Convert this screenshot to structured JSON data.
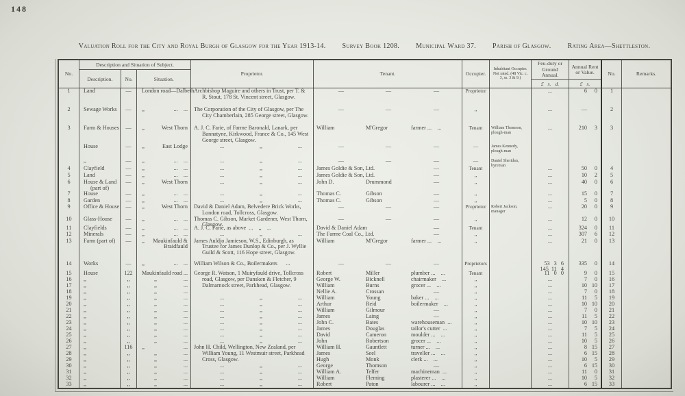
{
  "page": {
    "number": "148"
  },
  "title": {
    "segments": [
      "Valuation Roll for the City and Royal Burgh of Glasgow for the Year 1913-14.",
      "Survey Book 1208.",
      "Municipal Ward 37.",
      "Parish of Glasgow.",
      "Rating Area—Shettleston."
    ]
  },
  "table": {
    "header": {
      "no": "No.",
      "group": "Description and Situation of Subject.",
      "sub_description": "Description.",
      "sub_no": "No.",
      "sub_situation": "Situation.",
      "proprietor": "Proprietor.",
      "tenant": "Tenant.",
      "occupier": "Occupier.",
      "inhabitant": "Inhabitant Occupier. Not rated. (48 Vic. c. 3, ss. 3 & 9.)",
      "feu": "Feu-duty or Ground Annual.",
      "feu_money": "£   s.   d.",
      "rent": "Annual Rent or Value.",
      "rent_money": "£   s.",
      "no2": "No.",
      "remarks": "Remarks."
    },
    "rows": [
      {
        "no": "1",
        "desc": "Land",
        "dnum": "—",
        "sit_l": "London road—Dalbeth",
        "sit_r": "",
        "prop": "Archbishop Maguire and others in Trust, per T. & R. Stout, 178 St. Vincent street, Glasgow.",
        "ten": [
          "—",
          "—",
          "—"
        ],
        "occ": "Proprietor",
        "inhab": "",
        "feu": [
          "..."
        ],
        "rent": [
          "6",
          "0"
        ],
        "no2": "1"
      },
      {
        "no": "2",
        "desc": "Sewage Works",
        "dnum": "—",
        "sit_l": ",,",
        "sit_r": "... ...",
        "prop": "The Corporation of the City of Glasgow, per The City Chamberlain, 285 George street, Glasgow.",
        "ten": [
          "—",
          "—",
          "—"
        ],
        "occ": ",,",
        "inhab": "",
        "feu": [
          "..."
        ],
        "rent": [
          "—",
          ""
        ],
        "no2": "2"
      },
      {
        "no": "3",
        "desc": "Farm & Houses",
        "dnum": "—",
        "sit_l": ",,",
        "sit_r": "West Thorn",
        "prop": "A. J. C. Farie, of Farme Baronald, Lanark, per Bannatyne, Kirkwood, France & Co., 145 West George street, Glasgow.",
        "ten": [
          "William",
          "M'Gregor",
          "farmer ... ..."
        ],
        "occ": "Tenant",
        "inhab": "William Thomson, plough-man",
        "feu": [
          "..."
        ],
        "rent": [
          "210",
          "3"
        ],
        "no2": "3"
      },
      {
        "no": "",
        "desc": "House",
        "dnum": "—",
        "sit_l": ",,",
        "sit_r": "East Lodge",
        "prop_parts": [
          "...",
          ",,",
          "..."
        ],
        "ten": [
          "—",
          "—",
          "—"
        ],
        "occ": "—",
        "inhab": "James Kennedy, plough-man",
        "feu": [],
        "rent": [],
        "no2": ""
      },
      {
        "no": "",
        "desc": ",,",
        "dnum": "—",
        "sit_l": ",,",
        "sit_r": "... ...",
        "prop_parts": [
          "...",
          ",,",
          "..."
        ],
        "ten": [
          "—",
          "—",
          "—"
        ],
        "occ": "—",
        "inhab": "Daniel Sheridan, byreman",
        "feu": [],
        "rent": [],
        "no2": ""
      },
      {
        "no": "4",
        "desc": "Clayfield",
        "dnum": "—",
        "sit_l": ",,",
        "sit_r": "... ...",
        "prop_parts": [
          "...",
          ",,",
          "..."
        ],
        "ten": [
          "James Goldie & Son, Ltd.",
          "",
          "—"
        ],
        "occ": "Tenant",
        "inhab": "",
        "feu": [
          "..."
        ],
        "rent": [
          "50",
          "0"
        ],
        "no2": "4"
      },
      {
        "no": "5",
        "desc": "Land",
        "dnum": "—",
        "sit_l": ",,",
        "sit_r": "... ...",
        "prop_parts": [
          "...",
          ",,",
          "..."
        ],
        "ten": [
          "James Goldie & Son, Ltd.",
          "",
          "—"
        ],
        "occ": ",,",
        "inhab": "",
        "feu": [
          "..."
        ],
        "rent": [
          "10",
          "2"
        ],
        "no2": "5"
      },
      {
        "no": "6",
        "desc": "House & Land",
        "desc2": "(part of)",
        "dnum": "—",
        "sit_l": ",,",
        "sit_r": "West Thorn",
        "prop_parts": [
          "...",
          ",,",
          "..."
        ],
        "ten": [
          "John D.",
          "Drummond",
          "—"
        ],
        "occ": ",,",
        "inhab": "",
        "feu": [
          "..."
        ],
        "rent": [
          "40",
          "0"
        ],
        "no2": "6"
      },
      {
        "no": "7",
        "desc": "House",
        "dnum": "—",
        "sit_l": ",,",
        "sit_r": "... ...",
        "prop_parts": [
          "...",
          ",,",
          "..."
        ],
        "ten": [
          "Thomas C.",
          "Gibson",
          "—"
        ],
        "occ": ",,",
        "inhab": "",
        "feu": [
          "..."
        ],
        "rent": [
          "15",
          "0"
        ],
        "no2": "7"
      },
      {
        "no": "8",
        "desc": "Garden",
        "dnum": "—",
        "sit_l": ",,",
        "sit_r": "... ...",
        "prop_parts": [
          "...",
          ",,",
          "..."
        ],
        "ten": [
          "Thomas C.",
          "Gibson",
          "—"
        ],
        "occ": ",,",
        "inhab": "",
        "feu": [
          "..."
        ],
        "rent": [
          "5",
          "0"
        ],
        "no2": "8"
      },
      {
        "no": "9",
        "desc": "Office & House",
        "dnum": "—",
        "sit_l": ",,",
        "sit_r": "West Thorn",
        "prop": "David & Daniel Adam, Belvedere Brick Works, London road, Tollcross, Glasgow.",
        "ten": [
          "—",
          "—",
          "—"
        ],
        "occ": "Proprietor",
        "inhab": "Robert Jackson, manager",
        "feu": [
          "..."
        ],
        "rent": [
          "20",
          "0"
        ],
        "no2": "9"
      },
      {
        "no": "10",
        "desc": "Glass-House",
        "dnum": "—",
        "sit_l": ",,",
        "sit_r": "... ...",
        "prop": "Thomas C. Gibson, Market Gardener, West Thorn, Glasgow.",
        "ten": [
          "—",
          "—",
          "—"
        ],
        "occ": ",,",
        "inhab": "",
        "feu": [
          "..."
        ],
        "rent": [
          "12",
          "0"
        ],
        "no2": "10"
      },
      {
        "no": "11",
        "desc": "Clayfields",
        "dnum": "—",
        "sit_l": ",,",
        "sit_r": "... ...",
        "prop": "A. J. C. Farie, as above ...  ,,  ...",
        "ten": [
          "David & Daniel Adam",
          "",
          "—"
        ],
        "occ": "Tenant",
        "inhab": "",
        "feu": [
          "..."
        ],
        "rent": [
          "324",
          "0"
        ],
        "no2": "11"
      },
      {
        "no": "12",
        "desc": "Minerals",
        "dnum": "—",
        "sit_l": ",,",
        "sit_r": "... ...",
        "prop_parts": [
          "...",
          ",,",
          "..."
        ],
        "ten": [
          "The Farme Coal Co., Ltd.",
          "",
          "—"
        ],
        "occ": ",,",
        "inhab": "",
        "feu": [
          "..."
        ],
        "rent": [
          "307",
          "6"
        ],
        "no2": "12"
      },
      {
        "no": "13",
        "desc": "Farm (part of)",
        "dnum": "—",
        "sit_l": ",,",
        "sit_r": "Maukinfauld & Braidfauld",
        "prop": "James Auldjo Jamieson, W.S., Edinburgh, as Trustee for James Dunlop & Co., per J. Wyllie Guild & Scott, 116 Hope street, Glasgow.",
        "ten": [
          "William",
          "M'Gregor",
          "farmer ... ..."
        ],
        "occ": ",,",
        "inhab": "",
        "feu": [
          "..."
        ],
        "rent": [
          "21",
          "0"
        ],
        "no2": "13"
      },
      {
        "no": "14",
        "desc": "Works",
        "dnum": "—",
        "sit_l": ",,",
        "sit_r": "... ...",
        "prop": "William Wilson & Co., Boilermakers  ...",
        "ten": [
          "—",
          "—",
          "—"
        ],
        "occ": "Proprietors",
        "inhab": "",
        "feu": [
          "53   3   6",
          "145  11   4"
        ],
        "rent": [
          "335",
          "0"
        ],
        "no2": "14"
      },
      {
        "no": "15",
        "desc": "House",
        "dnum": "122",
        "sit_l": "Maukinfauld road",
        "sit_r": "...",
        "prop": "George R. Watson, 1 Muiryfauld drive, Tollcross road, Glasgow, per Dansken & Fletcher, 9 Dalmarnock street, Parkhead, Glasgow.",
        "ten": [
          "Robert",
          "Miller",
          "plumber ... ..."
        ],
        "occ": "Tenant",
        "inhab": "",
        "feu": [
          "11   0   0"
        ],
        "rent": [
          "9",
          "0"
        ],
        "no2": "15"
      },
      {
        "no": "16",
        "desc": ",,",
        "dnum": ",,",
        "sit_l": ",,",
        "sit_r": "...",
        "ten": [
          "George W.",
          "Bicknell",
          "chairmaker ..."
        ],
        "occ": ",,",
        "inhab": "",
        "feu": [
          "..."
        ],
        "rent": [
          "7",
          "0"
        ],
        "no2": "16"
      },
      {
        "no": "17",
        "desc": ",,",
        "dnum": ",,",
        "sit_l": ",,",
        "sit_r": "...",
        "ten": [
          "William",
          "Burns",
          "grocer ... ..."
        ],
        "occ": ",,",
        "inhab": "",
        "feu": [
          "..."
        ],
        "rent": [
          "10",
          "10"
        ],
        "no2": "17"
      },
      {
        "no": "18",
        "desc": ",,",
        "dnum": ",,",
        "sit_l": ",,",
        "sit_r": "...",
        "ten": [
          "Nellie A.",
          "Crossan",
          "—"
        ],
        "occ": ",,",
        "inhab": "",
        "feu": [
          "..."
        ],
        "rent": [
          "7",
          "0"
        ],
        "no2": "18"
      },
      {
        "no": "19",
        "desc": ",,",
        "dnum": ",,",
        "sit_l": ",,",
        "sit_r": "...",
        "prop_parts": [
          "...",
          ",,",
          "..."
        ],
        "ten": [
          "William",
          "Young",
          "baker ... ..."
        ],
        "occ": ",,",
        "inhab": "",
        "feu": [
          "..."
        ],
        "rent": [
          "11",
          "5"
        ],
        "no2": "19"
      },
      {
        "no": "20",
        "desc": ",,",
        "dnum": ",,",
        "sit_l": ",,",
        "sit_r": "...",
        "prop_parts": [
          "...",
          ",,",
          "..."
        ],
        "ten": [
          "Arthur",
          "Reid",
          "boilermaker ..."
        ],
        "occ": ",,",
        "inhab": "",
        "feu": [
          "..."
        ],
        "rent": [
          "10",
          "10"
        ],
        "no2": "20"
      },
      {
        "no": "21",
        "desc": ",,",
        "dnum": ",,",
        "sit_l": ",,",
        "sit_r": "...",
        "prop_parts": [
          "...",
          ",,",
          "..."
        ],
        "ten": [
          "William",
          "Gilmour",
          "—"
        ],
        "occ": ",,",
        "inhab": "",
        "feu": [
          "..."
        ],
        "rent": [
          "7",
          "0"
        ],
        "no2": "21"
      },
      {
        "no": "22",
        "desc": ",,",
        "dnum": ",,",
        "sit_l": ",,",
        "sit_r": "...",
        "prop_parts": [
          "...",
          ",,",
          "..."
        ],
        "ten": [
          "James",
          "Laing",
          "—"
        ],
        "occ": ",,",
        "inhab": "",
        "feu": [
          "..."
        ],
        "rent": [
          "11",
          "5"
        ],
        "no2": "22"
      },
      {
        "no": "23",
        "desc": ",,",
        "dnum": ",,",
        "sit_l": ",,",
        "sit_r": "...",
        "prop_parts": [
          "...",
          ",,",
          "..."
        ],
        "ten": [
          "John C.",
          "Bates",
          "warehouseman ..."
        ],
        "occ": ",,",
        "inhab": "",
        "feu": [
          "..."
        ],
        "rent": [
          "10",
          "10"
        ],
        "no2": "23"
      },
      {
        "no": "24",
        "desc": ",,",
        "dnum": ",,",
        "sit_l": ",,",
        "sit_r": "...",
        "prop_parts": [
          "...",
          ",,",
          "..."
        ],
        "ten": [
          "James",
          "Douglas",
          "tailor's cutter ..."
        ],
        "occ": ",,",
        "inhab": "",
        "feu": [
          "..."
        ],
        "rent": [
          "7",
          "5"
        ],
        "no2": "24"
      },
      {
        "no": "25",
        "desc": ",,",
        "dnum": ",,",
        "sit_l": ",,",
        "sit_r": "...",
        "prop_parts": [
          "...",
          ",,",
          "..."
        ],
        "ten": [
          "David",
          "Cameron",
          "moulder ... ..."
        ],
        "occ": ",,",
        "inhab": "",
        "feu": [
          "..."
        ],
        "rent": [
          "11",
          "5"
        ],
        "no2": "25"
      },
      {
        "no": "26",
        "desc": ",,",
        "dnum": ",,",
        "sit_l": ",,",
        "sit_r": "...",
        "prop_parts": [
          "...",
          ",,",
          "..."
        ],
        "ten": [
          "John",
          "Robertson",
          "grocer ... ..."
        ],
        "occ": ",,",
        "inhab": "",
        "feu": [
          "..."
        ],
        "rent": [
          "10",
          "5"
        ],
        "no2": "26"
      },
      {
        "no": "27",
        "desc": ",,",
        "dnum": "116",
        "sit_l": ",,",
        "sit_r": "...",
        "prop": "John H. Child, Wellington, New Zealand, per William Young, 11 Westmuir street, Parkhead Cross, Glasgow.",
        "ten": [
          "William H.",
          "Gauntlett",
          "turner ... ..."
        ],
        "occ": ",,",
        "inhab": "",
        "feu": [
          "..."
        ],
        "rent": [
          "8",
          "15"
        ],
        "no2": "27"
      },
      {
        "no": "28",
        "desc": ",,",
        "dnum": ",,",
        "sit_l": ",,",
        "sit_r": "...",
        "ten": [
          "James",
          "Seel",
          "traveller ... ..."
        ],
        "occ": ",,",
        "inhab": "",
        "feu": [
          "..."
        ],
        "rent": [
          "6",
          "15"
        ],
        "no2": "28"
      },
      {
        "no": "29",
        "desc": ",,",
        "dnum": ",,",
        "sit_l": ",,",
        "sit_r": "...",
        "ten": [
          "Hugh",
          "Monk",
          "clerk ... ..."
        ],
        "occ": ",,",
        "inhab": "",
        "feu": [
          "..."
        ],
        "rent": [
          "10",
          "5"
        ],
        "no2": "29"
      },
      {
        "no": "30",
        "desc": ",,",
        "dnum": ",,",
        "sit_l": ",,",
        "sit_r": "...",
        "prop_parts": [
          "...",
          ",,",
          "..."
        ],
        "ten": [
          "George",
          "Thomson",
          "—"
        ],
        "occ": ",,",
        "inhab": "",
        "feu": [
          "..."
        ],
        "rent": [
          "6",
          "15"
        ],
        "no2": "30"
      },
      {
        "no": "31",
        "desc": ",,",
        "dnum": ",,",
        "sit_l": ",,",
        "sit_r": "...",
        "prop_parts": [
          "...",
          ",,",
          "..."
        ],
        "ten": [
          "William A.",
          "Telfer",
          "machineman ..."
        ],
        "occ": ",,",
        "inhab": "",
        "feu": [
          "..."
        ],
        "rent": [
          "11",
          "0"
        ],
        "no2": "31"
      },
      {
        "no": "32",
        "desc": ",,",
        "dnum": ",,",
        "sit_l": ",,",
        "sit_r": "...",
        "prop_parts": [
          "...",
          ",,",
          "..."
        ],
        "ten": [
          "William",
          "Fleming",
          "plasterer ... ..."
        ],
        "occ": ",,",
        "inhab": "",
        "feu": [
          "..."
        ],
        "rent": [
          "10",
          "5"
        ],
        "no2": "32"
      },
      {
        "no": "33",
        "desc": ",,",
        "dnum": ",,",
        "sit_l": ",,",
        "sit_r": "...",
        "prop_parts": [
          "...",
          ",,",
          "..."
        ],
        "ten": [
          "Robert",
          "Paton",
          "labourer ... ..."
        ],
        "occ": ",,",
        "inhab": "",
        "feu": [
          "..."
        ],
        "rent": [
          "6",
          "15"
        ],
        "no2": "33"
      }
    ]
  }
}
